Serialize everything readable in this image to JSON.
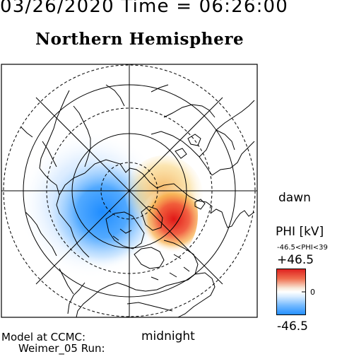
{
  "header": {
    "datetime": "03/26/2020 Time = 06:26:00",
    "title": "Northern Hemisphere"
  },
  "map": {
    "projection": "polar-view",
    "orientation": {
      "right": "dawn",
      "bottom": "midnight"
    },
    "graticule": "dashed latitude circles and meridian lines",
    "coastlines": true
  },
  "legend": {
    "quantity_label": "PHI [kV]",
    "range_text": "-46.5<PHI<39",
    "max_label": "+46.5",
    "zero_label": "0",
    "min_label": "-46.5",
    "colors": {
      "negative": "#1e8cff",
      "zero": "#ffffff",
      "positive": "#e02020"
    }
  },
  "credits": {
    "line1": "Model at CCMC:",
    "line2": "Weimer_05 Run:"
  }
}
